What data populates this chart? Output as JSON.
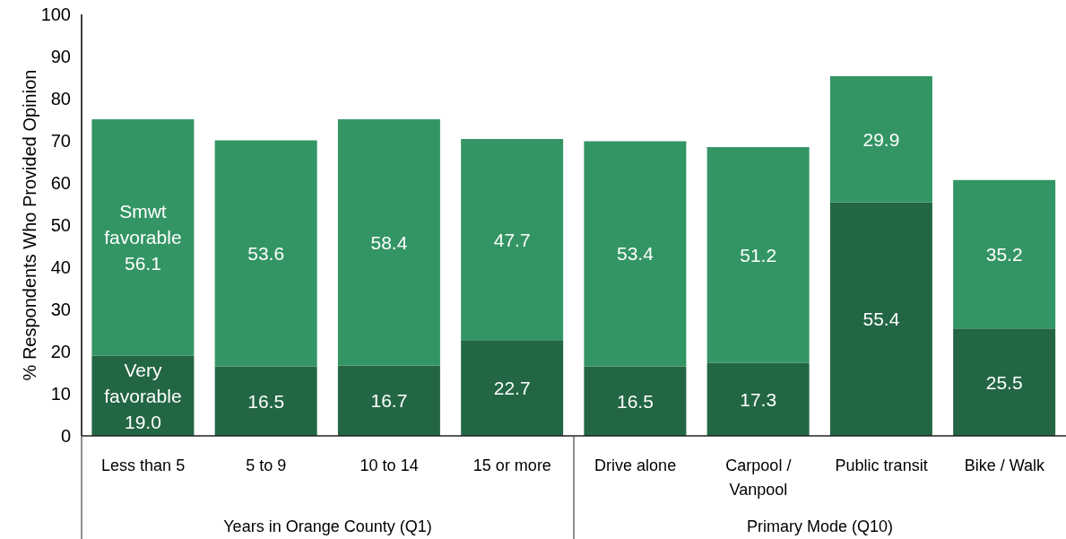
{
  "chart_data": {
    "type": "bar",
    "stacked": true,
    "ylabel": "% Respondents Who Provided Opinion",
    "categories": [
      "Less than 5",
      "5 to 9",
      "10 to 14",
      "15 or more",
      "Drive alone",
      "Carpool / Vanpool",
      "Public transit",
      "Bike / Walk"
    ],
    "series": [
      {
        "name": "Very favorable",
        "color": "#236644",
        "values": [
          19.0,
          16.5,
          16.7,
          22.7,
          16.5,
          17.3,
          55.4,
          25.5
        ],
        "value_labels": [
          "19.0",
          "16.5",
          "16.7",
          "22.7",
          "16.5",
          "17.3",
          "55.4",
          "25.5"
        ]
      },
      {
        "name": "Smwt favorable",
        "color": "#339564",
        "values": [
          56.1,
          53.6,
          58.4,
          47.7,
          53.4,
          51.2,
          29.9,
          35.2
        ],
        "value_labels": [
          "56.1",
          "53.6",
          "58.4",
          "47.7",
          "53.4",
          "51.2",
          "29.9",
          "35.2"
        ]
      }
    ],
    "ylim": [
      0,
      100
    ],
    "yticks": [
      0,
      10,
      20,
      30,
      40,
      50,
      60,
      70,
      80,
      90,
      100
    ],
    "annotations": [
      "Years in Orange County (Q1)",
      "Primary Mode (Q10)"
    ]
  }
}
